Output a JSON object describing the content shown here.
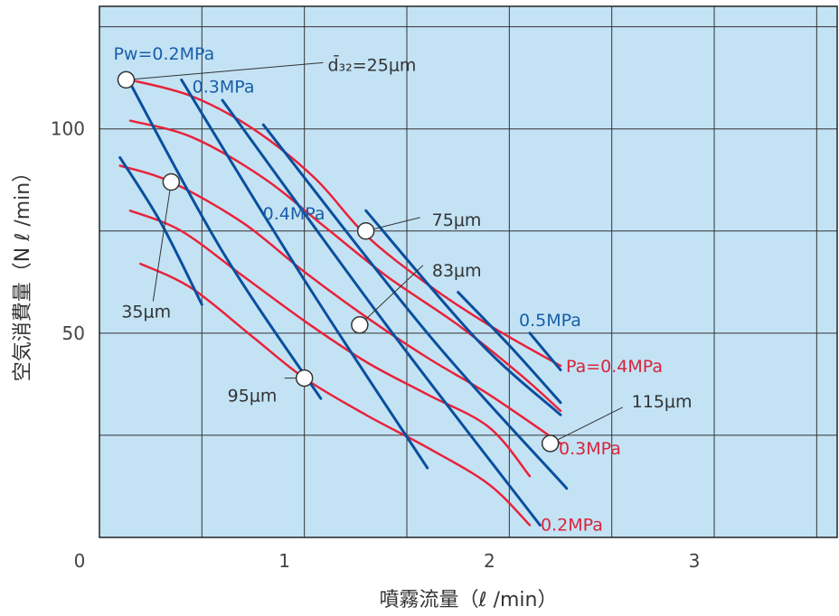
{
  "chart_data": {
    "type": "line",
    "title": "",
    "xlabel": "噴霧流量（ℓ /min）",
    "ylabel": "空気消費量（N ℓ /min）",
    "xlim": [
      0,
      3.6
    ],
    "ylim": [
      0,
      130
    ],
    "x_ticks": [
      {
        "value": 0,
        "label": "0"
      },
      {
        "value": 1,
        "label": "1"
      },
      {
        "value": 2,
        "label": "2"
      },
      {
        "value": 3,
        "label": "3"
      }
    ],
    "y_ticks": [
      {
        "value": 50,
        "label": "50"
      },
      {
        "value": 100,
        "label": "100"
      }
    ],
    "x_grid": [
      0.5,
      1,
      1.5,
      2,
      2.5,
      3,
      3.5
    ],
    "y_grid": [
      25,
      50,
      75,
      100,
      125
    ],
    "grid": true,
    "plot_background": "#c3e3f5",
    "grid_color": "#333333",
    "series_colors": {
      "air_pressure": "#e8233a",
      "water_pressure": "#0a4f9e"
    },
    "label_colors": {
      "air_pressure": "#d8243b",
      "water_pressure": "#1a5ea8",
      "droplet_size": "#333333"
    },
    "air_pressure_series": [
      {
        "name": "Pa=0.4MPa",
        "x": [
          0.15,
          0.45,
          0.75,
          1.05,
          1.3,
          1.6,
          1.9,
          2.25
        ],
        "y": [
          112,
          108,
          100,
          88,
          74,
          62,
          52,
          42
        ]
      },
      {
        "name": "",
        "x": [
          0.15,
          0.45,
          0.8,
          1.1,
          1.4,
          1.75,
          2.05,
          2.25
        ],
        "y": [
          102,
          98,
          88,
          76,
          64,
          52,
          40,
          31
        ]
      },
      {
        "name": "0.3MPa",
        "x": [
          0.1,
          0.35,
          0.7,
          1.0,
          1.3,
          1.6,
          1.9,
          2.25
        ],
        "y": [
          91,
          87,
          77,
          65,
          54,
          44,
          35,
          23
        ]
      },
      {
        "name": "",
        "x": [
          0.15,
          0.4,
          0.7,
          1.0,
          1.3,
          1.6,
          1.9,
          2.1
        ],
        "y": [
          80,
          75,
          64,
          53,
          43,
          35,
          27,
          15
        ]
      },
      {
        "name": "0.2MPa",
        "x": [
          0.2,
          0.45,
          0.75,
          1.0,
          1.3,
          1.6,
          1.9,
          2.1
        ],
        "y": [
          67,
          61,
          49,
          39,
          30,
          22,
          13,
          3
        ]
      }
    ],
    "water_pressure_series": [
      {
        "name": "",
        "x": [
          0.1,
          0.3,
          0.5
        ],
        "y": [
          93,
          77,
          57
        ]
      },
      {
        "name": "Pw=0.2MPa",
        "x": [
          0.13,
          0.6,
          1.08
        ],
        "y": [
          113,
          70,
          34
        ]
      },
      {
        "name": "0.3MPa",
        "x": [
          0.4,
          1.0,
          1.6
        ],
        "y": [
          112,
          63,
          17
        ]
      },
      {
        "name": "",
        "x": [
          0.6,
          1.4,
          2.15
        ],
        "y": [
          107,
          52,
          3
        ]
      },
      {
        "name": "0.4MPa",
        "x": [
          0.8,
          1.6,
          2.28
        ],
        "y": [
          101,
          50,
          12
        ]
      },
      {
        "name": "",
        "x": [
          1.3,
          1.85,
          2.25
        ],
        "y": [
          80,
          48,
          30
        ]
      },
      {
        "name": "",
        "x": [
          1.75,
          2.0,
          2.25
        ],
        "y": [
          60,
          47,
          33
        ]
      },
      {
        "name": "0.5MPa",
        "x": [
          2.1,
          2.25
        ],
        "y": [
          50,
          41
        ]
      }
    ],
    "droplet_points": [
      {
        "x": 0.13,
        "y": 112,
        "label": "d̄₃₂=25μm"
      },
      {
        "x": 0.35,
        "y": 87,
        "label": "35μm"
      },
      {
        "x": 1.3,
        "y": 75,
        "label": "75μm"
      },
      {
        "x": 1.27,
        "y": 52,
        "label": "83μm"
      },
      {
        "x": 1.0,
        "y": 39,
        "label": "95μm"
      },
      {
        "x": 2.2,
        "y": 23,
        "label": "115μm"
      }
    ]
  }
}
